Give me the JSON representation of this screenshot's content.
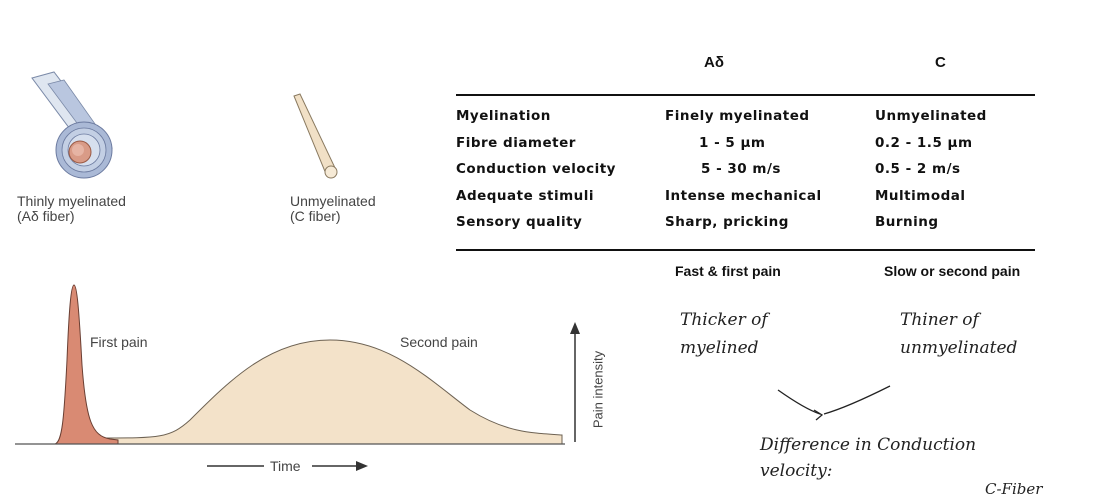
{
  "fibers": {
    "a_delta_caption": [
      "Thinly myelinated",
      "(Aδ fiber)"
    ],
    "c_caption": [
      "Unmyelinated",
      "(C fiber)"
    ]
  },
  "table": {
    "columns": [
      "Aδ",
      "C"
    ],
    "rows": [
      {
        "label": "Myelination",
        "a_delta": "Finely  myelinated",
        "c": "Unmyelinated"
      },
      {
        "label": "Fibre  diameter",
        "a_delta": "1 - 5  μm",
        "c": "0.2  -  1.5  μm"
      },
      {
        "label": "Conduction  velocity",
        "a_delta": "5 - 30  m/s",
        "c": "0.5  -  2  m/s"
      },
      {
        "label": "Adequate  stimuli",
        "a_delta": "Intense  mechanical",
        "c": "Multimodal"
      },
      {
        "label": "Sensory  quality",
        "a_delta": "Sharp,  pricking",
        "c": "Burning"
      }
    ],
    "footer": {
      "a_delta": "Fast & first pain",
      "c": "Slow or second pain"
    }
  },
  "graph": {
    "first_pain_label": "First pain",
    "second_pain_label": "Second pain",
    "x_label": "Time",
    "y_label": "Pain intensity",
    "colors": {
      "first": "#d98a73",
      "second": "#f3e2c9",
      "outline": "#555555"
    }
  },
  "handwritten": {
    "left_note": [
      "Thicker of",
      "myelined"
    ],
    "right_note": [
      "Thiner of",
      "unmyelinated"
    ],
    "bottom_note": [
      "Difference in Conduction",
      "velocity:"
    ],
    "corner_note": "C-Fiber"
  }
}
